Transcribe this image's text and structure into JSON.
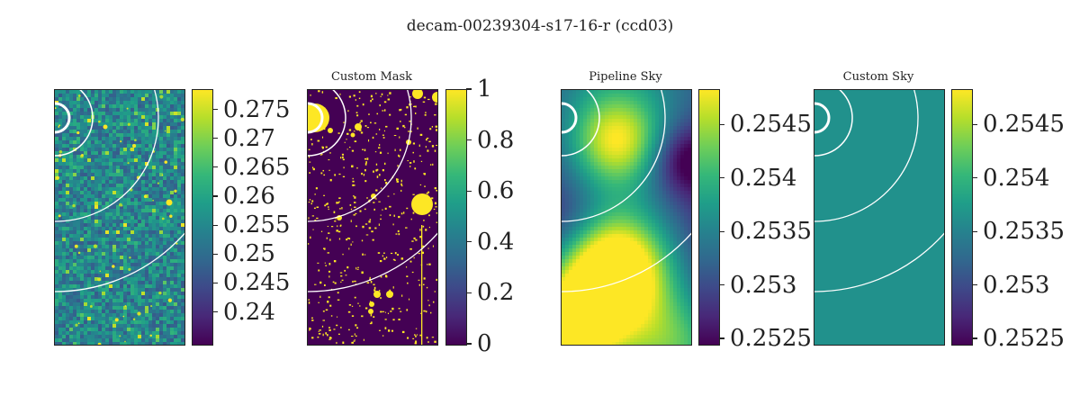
{
  "figure": {
    "title": "decam-00239304-s17-16-r (ccd03)"
  },
  "chart_data": [
    {
      "type": "heatmap",
      "title": "",
      "colormap": "viridis",
      "colorbar": {
        "min": 0.2345,
        "max": 0.2785,
        "ticks": [
          0.24,
          0.245,
          0.25,
          0.255,
          0.26,
          0.265,
          0.27,
          0.275
        ],
        "tick_labels": [
          "0.24",
          "0.245",
          "0.25",
          "0.255",
          "0.26",
          "0.265",
          "0.27",
          "0.275"
        ]
      },
      "content": "noisy image with scattered bright sources",
      "overlay": "white concentric circles centered on upper-left corner"
    },
    {
      "type": "heatmap",
      "title": "Custom Mask",
      "colormap": "viridis",
      "colorbar": {
        "min": 0,
        "max": 1,
        "ticks": [
          0,
          0.2,
          0.4,
          0.6,
          0.8,
          1
        ],
        "tick_labels": [
          "0",
          "0.2",
          "0.4",
          "0.6",
          "0.8",
          "1"
        ]
      },
      "content": "binary mask: yellow masked sources on purple background",
      "overlay": "white concentric circles centered on upper-left corner"
    },
    {
      "type": "heatmap",
      "title": "Pipeline Sky",
      "colormap": "viridis",
      "colorbar": {
        "min": 0.25245,
        "max": 0.25483,
        "ticks": [
          0.2525,
          0.253,
          0.2535,
          0.254,
          0.2545
        ],
        "tick_labels": [
          "0.2525",
          "0.253",
          "0.2535",
          "0.254",
          "0.2545"
        ]
      },
      "content": "smooth varying sky background",
      "overlay": "white concentric circles centered on upper-left corner"
    },
    {
      "type": "heatmap",
      "title": "Custom Sky",
      "colormap": "viridis",
      "colorbar": {
        "min": 0.25245,
        "max": 0.25483,
        "ticks": [
          0.2525,
          0.253,
          0.2535,
          0.254,
          0.2545
        ],
        "tick_labels": [
          "0.2525",
          "0.253",
          "0.2535",
          "0.254",
          "0.2545"
        ]
      },
      "content": "constant sky value (uniform)",
      "overlay": "white concentric circles centered on upper-left corner"
    }
  ],
  "colors": {
    "viridis_low": "#440154",
    "viridis_mid": "#21918c",
    "viridis_high": "#fde725",
    "overlay": "#ffffff"
  }
}
